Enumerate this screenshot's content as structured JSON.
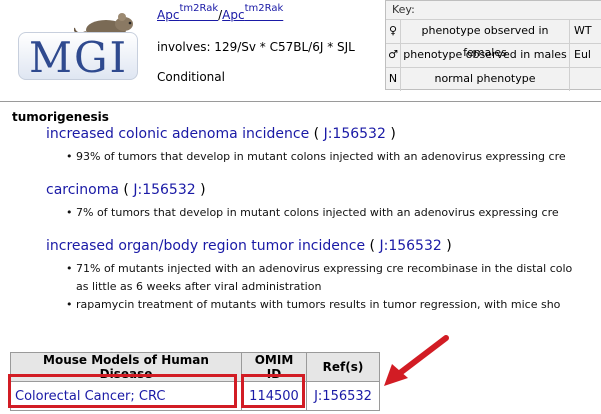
{
  "header": {
    "logo_text": "MGI",
    "allele": {
      "gene1": "Apc",
      "sup1": "tm2Rak",
      "separator": "/",
      "gene2": "Apc",
      "sup2": "tm2Rak"
    },
    "involves": "involves: 129/Sv * C57BL/6J * SJL",
    "conditional": "Conditional"
  },
  "key": {
    "title": "Key:",
    "rows": [
      {
        "symbol": "♀",
        "desc": "phenotype observed in females",
        "extra": "WT"
      },
      {
        "symbol": "♂",
        "desc": "phenotype observed in males",
        "extra": "Eul"
      },
      {
        "symbol": "N",
        "desc": "normal phenotype",
        "extra": ""
      }
    ]
  },
  "section": {
    "title": "tumorigenesis",
    "terms": [
      {
        "label": "increased colonic adenoma incidence",
        "jnum": "J:156532",
        "notes": [
          "93% of tumors that develop in mutant colons injected with an adenovirus expressing cre"
        ]
      },
      {
        "label": "carcinoma",
        "jnum": "J:156532",
        "notes": [
          "7% of tumors that develop in mutant colons injected with an adenovirus expressing cre"
        ]
      },
      {
        "label": "increased organ/body region tumor incidence",
        "jnum": "J:156532",
        "notes": [
          "71% of mutants injected with an adenovirus expressing cre recombinase in the distal colo",
          "as little as 6 weeks after viral administration",
          "rapamycin treatment of mutants with tumors results in tumor regression, with mice sho"
        ]
      }
    ]
  },
  "models_table": {
    "headers": [
      "Mouse Models of Human Disease",
      "OMIM ID",
      "Ref(s)"
    ],
    "row": {
      "disease": "Colorectal Cancer; CRC",
      "omim": "114500",
      "ref": "J:156532"
    }
  },
  "annotation_color": "#d21c24"
}
